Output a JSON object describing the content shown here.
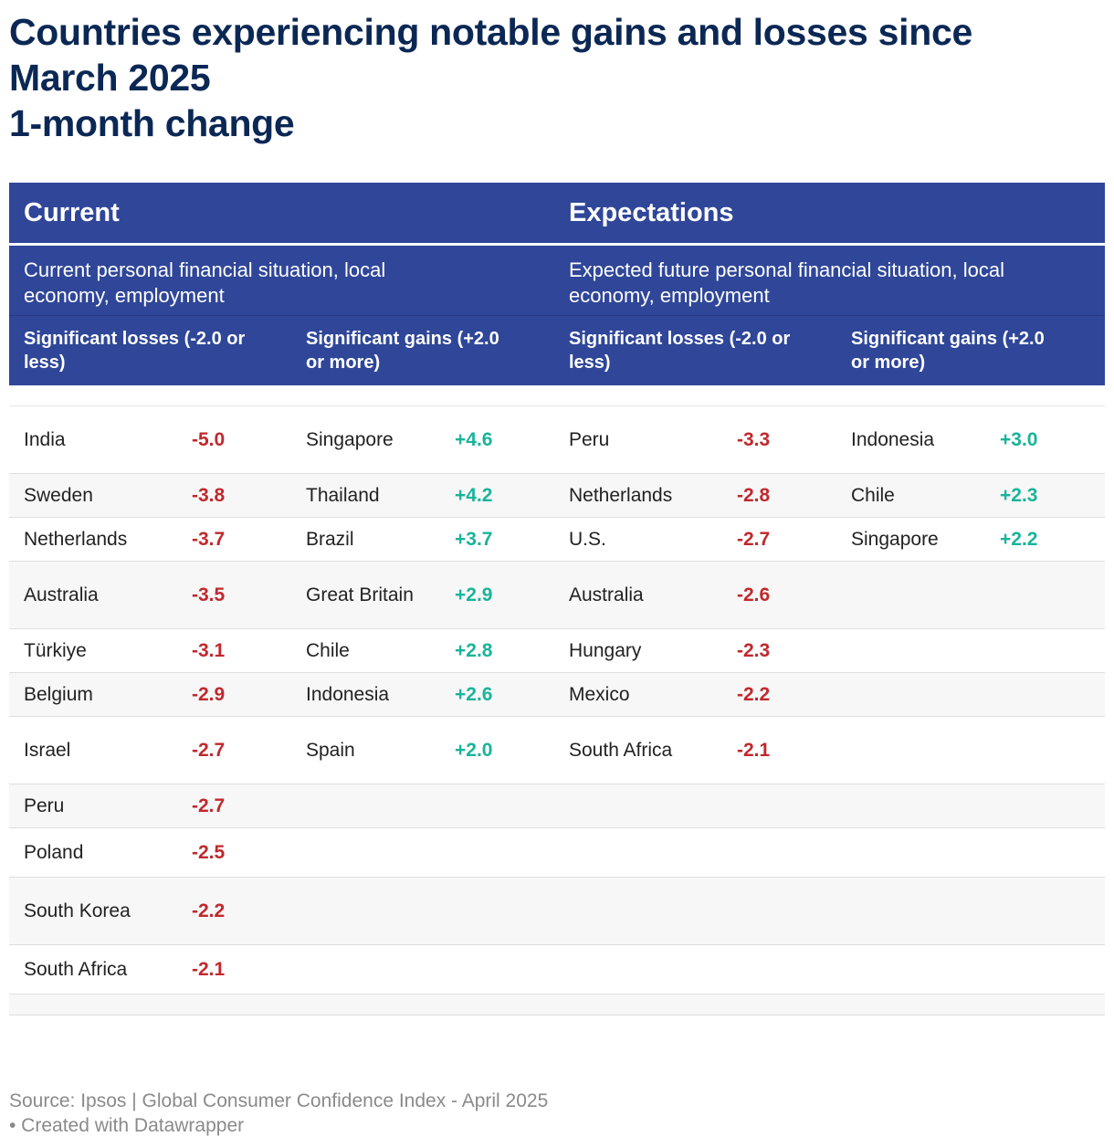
{
  "title": {
    "line1": "Countries experiencing notable gains and losses since",
    "line2": "March 2025",
    "line3": "1-month change"
  },
  "header": {
    "current": "Current",
    "expectations": "Expectations",
    "current_desc": "Current personal financial situation, local economy, employment",
    "expectations_desc": "Expected future personal financial situation, local economy, employment",
    "losses_label": "Significant losses (-2.0 or less)",
    "gains_label": "Significant gains (+2.0 or more)"
  },
  "colors": {
    "header_bg": "#2f4699",
    "title": "#0b2855",
    "negative": "#c0282d",
    "positive": "#19b49a"
  },
  "chart_data": {
    "type": "table",
    "columns": [
      "Current losses",
      "Current gains",
      "Expectations losses",
      "Expectations gains"
    ],
    "rows": [
      [
        [
          "India",
          "-5.0"
        ],
        [
          "Singapore",
          "+4.6"
        ],
        [
          "Peru",
          "-3.3"
        ],
        [
          "Indonesia",
          "+3.0"
        ]
      ],
      [
        [
          "Sweden",
          "-3.8"
        ],
        [
          "Thailand",
          "+4.2"
        ],
        [
          "Netherlands",
          "-2.8"
        ],
        [
          "Chile",
          "+2.3"
        ]
      ],
      [
        [
          "Netherlands",
          "-3.7"
        ],
        [
          "Brazil",
          "+3.7"
        ],
        [
          "U.S.",
          "-2.7"
        ],
        [
          "Singapore",
          "+2.2"
        ]
      ],
      [
        [
          "Australia",
          "-3.5"
        ],
        [
          "Great Britain",
          "+2.9"
        ],
        [
          "Australia",
          "-2.6"
        ],
        [
          "",
          ""
        ]
      ],
      [
        [
          "Türkiye",
          "-3.1"
        ],
        [
          "Chile",
          "+2.8"
        ],
        [
          "Hungary",
          "-2.3"
        ],
        [
          "",
          ""
        ]
      ],
      [
        [
          "Belgium",
          "-2.9"
        ],
        [
          "Indonesia",
          "+2.6"
        ],
        [
          "Mexico",
          "-2.2"
        ],
        [
          "",
          ""
        ]
      ],
      [
        [
          "Israel",
          "-2.7"
        ],
        [
          "Spain",
          "+2.0"
        ],
        [
          "South Africa",
          "-2.1"
        ],
        [
          "",
          ""
        ]
      ],
      [
        [
          "Peru",
          "-2.7"
        ],
        [
          "",
          ""
        ],
        [
          "",
          ""
        ],
        [
          "",
          ""
        ]
      ],
      [
        [
          "Poland",
          "-2.5"
        ],
        [
          "",
          ""
        ],
        [
          "",
          ""
        ],
        [
          "",
          ""
        ]
      ],
      [
        [
          "South Korea",
          "-2.2"
        ],
        [
          "",
          ""
        ],
        [
          "",
          ""
        ],
        [
          "",
          ""
        ]
      ],
      [
        [
          "South Africa",
          "-2.1"
        ],
        [
          "",
          ""
        ],
        [
          "",
          ""
        ],
        [
          "",
          ""
        ]
      ]
    ]
  },
  "source": {
    "line1": "Source: Ipsos | Global Consumer Confidence Index - April 2025",
    "line2": " • Created with Datawrapper"
  }
}
